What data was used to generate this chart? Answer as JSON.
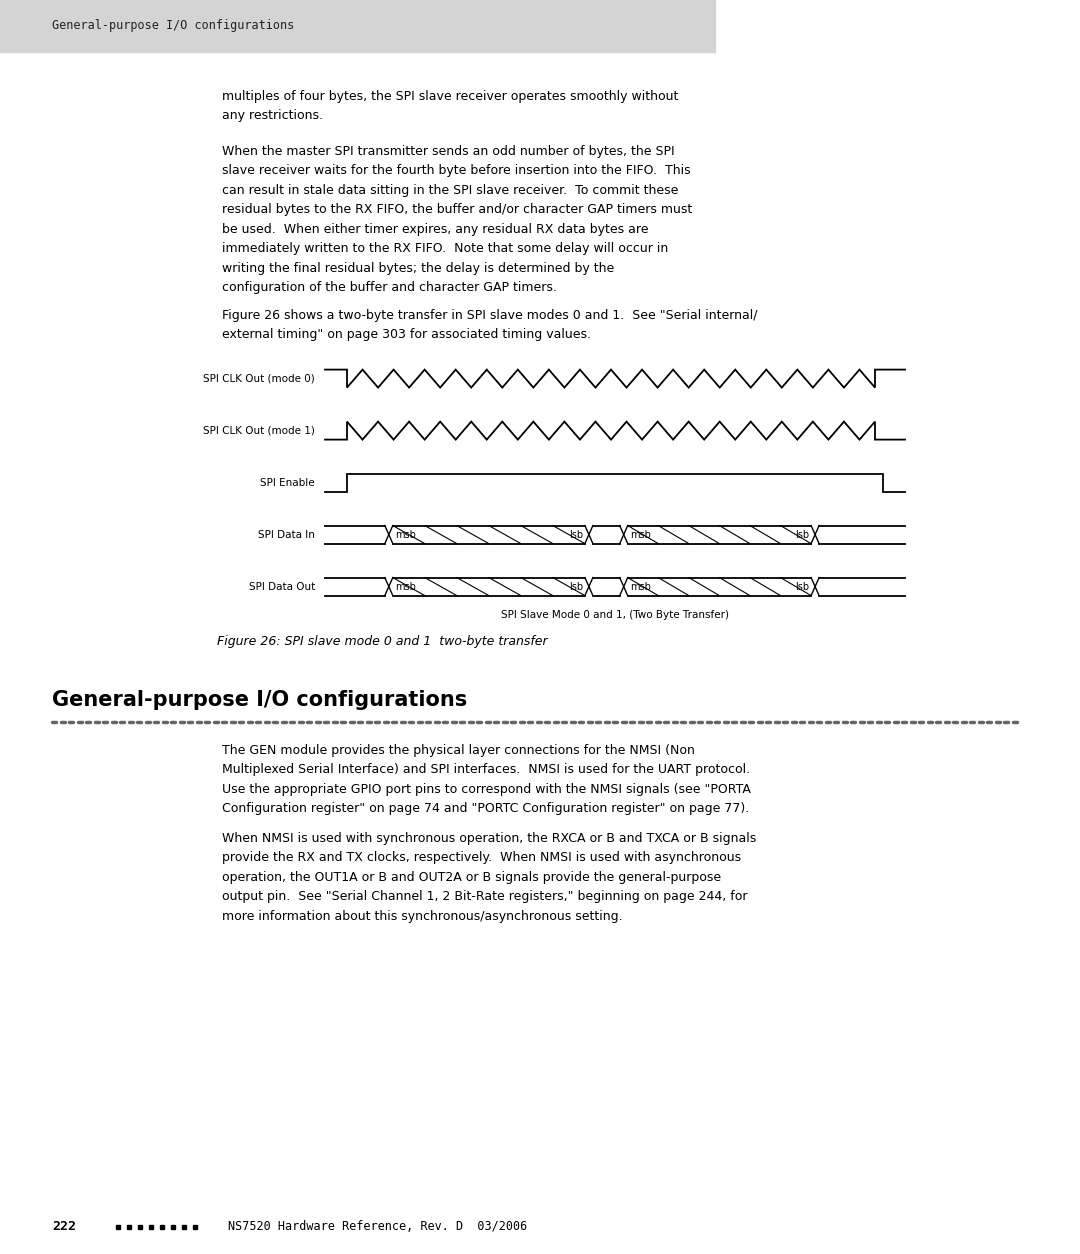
{
  "bg_color": "#ffffff",
  "header_bg": "#d4d4d4",
  "header_text": "General-purpose I/O configurations",
  "page_width": 10.8,
  "page_height": 12.54,
  "para1_lines": [
    "multiples of four bytes, the SPI slave receiver operates smoothly without",
    "any restrictions.",
    "",
    "When the master SPI transmitter sends an odd number of bytes, the SPI",
    "slave receiver waits for the fourth byte before insertion into the FIFO.  This",
    "can result in stale data sitting in the SPI slave receiver.  To commit these",
    "residual bytes to the RX FIFO, the buffer and/or character GAP timers must",
    "be used.  When either timer expires, any residual RX data bytes are",
    "immediately written to the RX FIFO.  Note that some delay will occur in",
    "writing the final residual bytes; the delay is determined by the",
    "configuration of the buffer and character GAP timers."
  ],
  "para2_lines": [
    "Figure 26 shows a two-byte transfer in SPI slave modes 0 and 1.  See \"Serial internal/",
    "external timing\" on page 303 for associated timing values."
  ],
  "figure_caption": "Figure 26: SPI slave mode 0 and 1  two-byte transfer",
  "figure_sublabel": "SPI Slave Mode 0 and 1, (Two Byte Transfer)",
  "signal_labels": [
    "SPI CLK Out (mode 0)",
    "SPI CLK Out (mode 1)",
    "SPI Enable",
    "SPI Data In",
    "SPI Data Out"
  ],
  "section_title": "General-purpose I/O configurations",
  "section_para1_lines": [
    "The GEN module provides the physical layer connections for the NMSI (Non",
    "Multiplexed Serial Interface) and SPI interfaces.  NMSI is used for the UART protocol.",
    "Use the appropriate GPIO port pins to correspond with the NMSI signals (see \"PORTA",
    "Configuration register\" on page 74 and \"PORTC Configuration register\" on page 77)."
  ],
  "section_para2_lines": [
    "When NMSI is used with synchronous operation, the RXCA or B and TXCA or B signals",
    "provide the RX and TX clocks, respectively.  When NMSI is used with asynchronous",
    "operation, the OUT1A or B and OUT2A or B signals provide the general-purpose",
    "output pin.  See \"Serial Channel 1, 2 Bit-Rate registers,\" beginning on page 244, for",
    "more information about this synchronous/asynchronous setting."
  ],
  "footer_page": "222",
  "footer_text": "NS7520 Hardware Reference, Rev. D  03/2006",
  "dot_separator_color": "#666666"
}
